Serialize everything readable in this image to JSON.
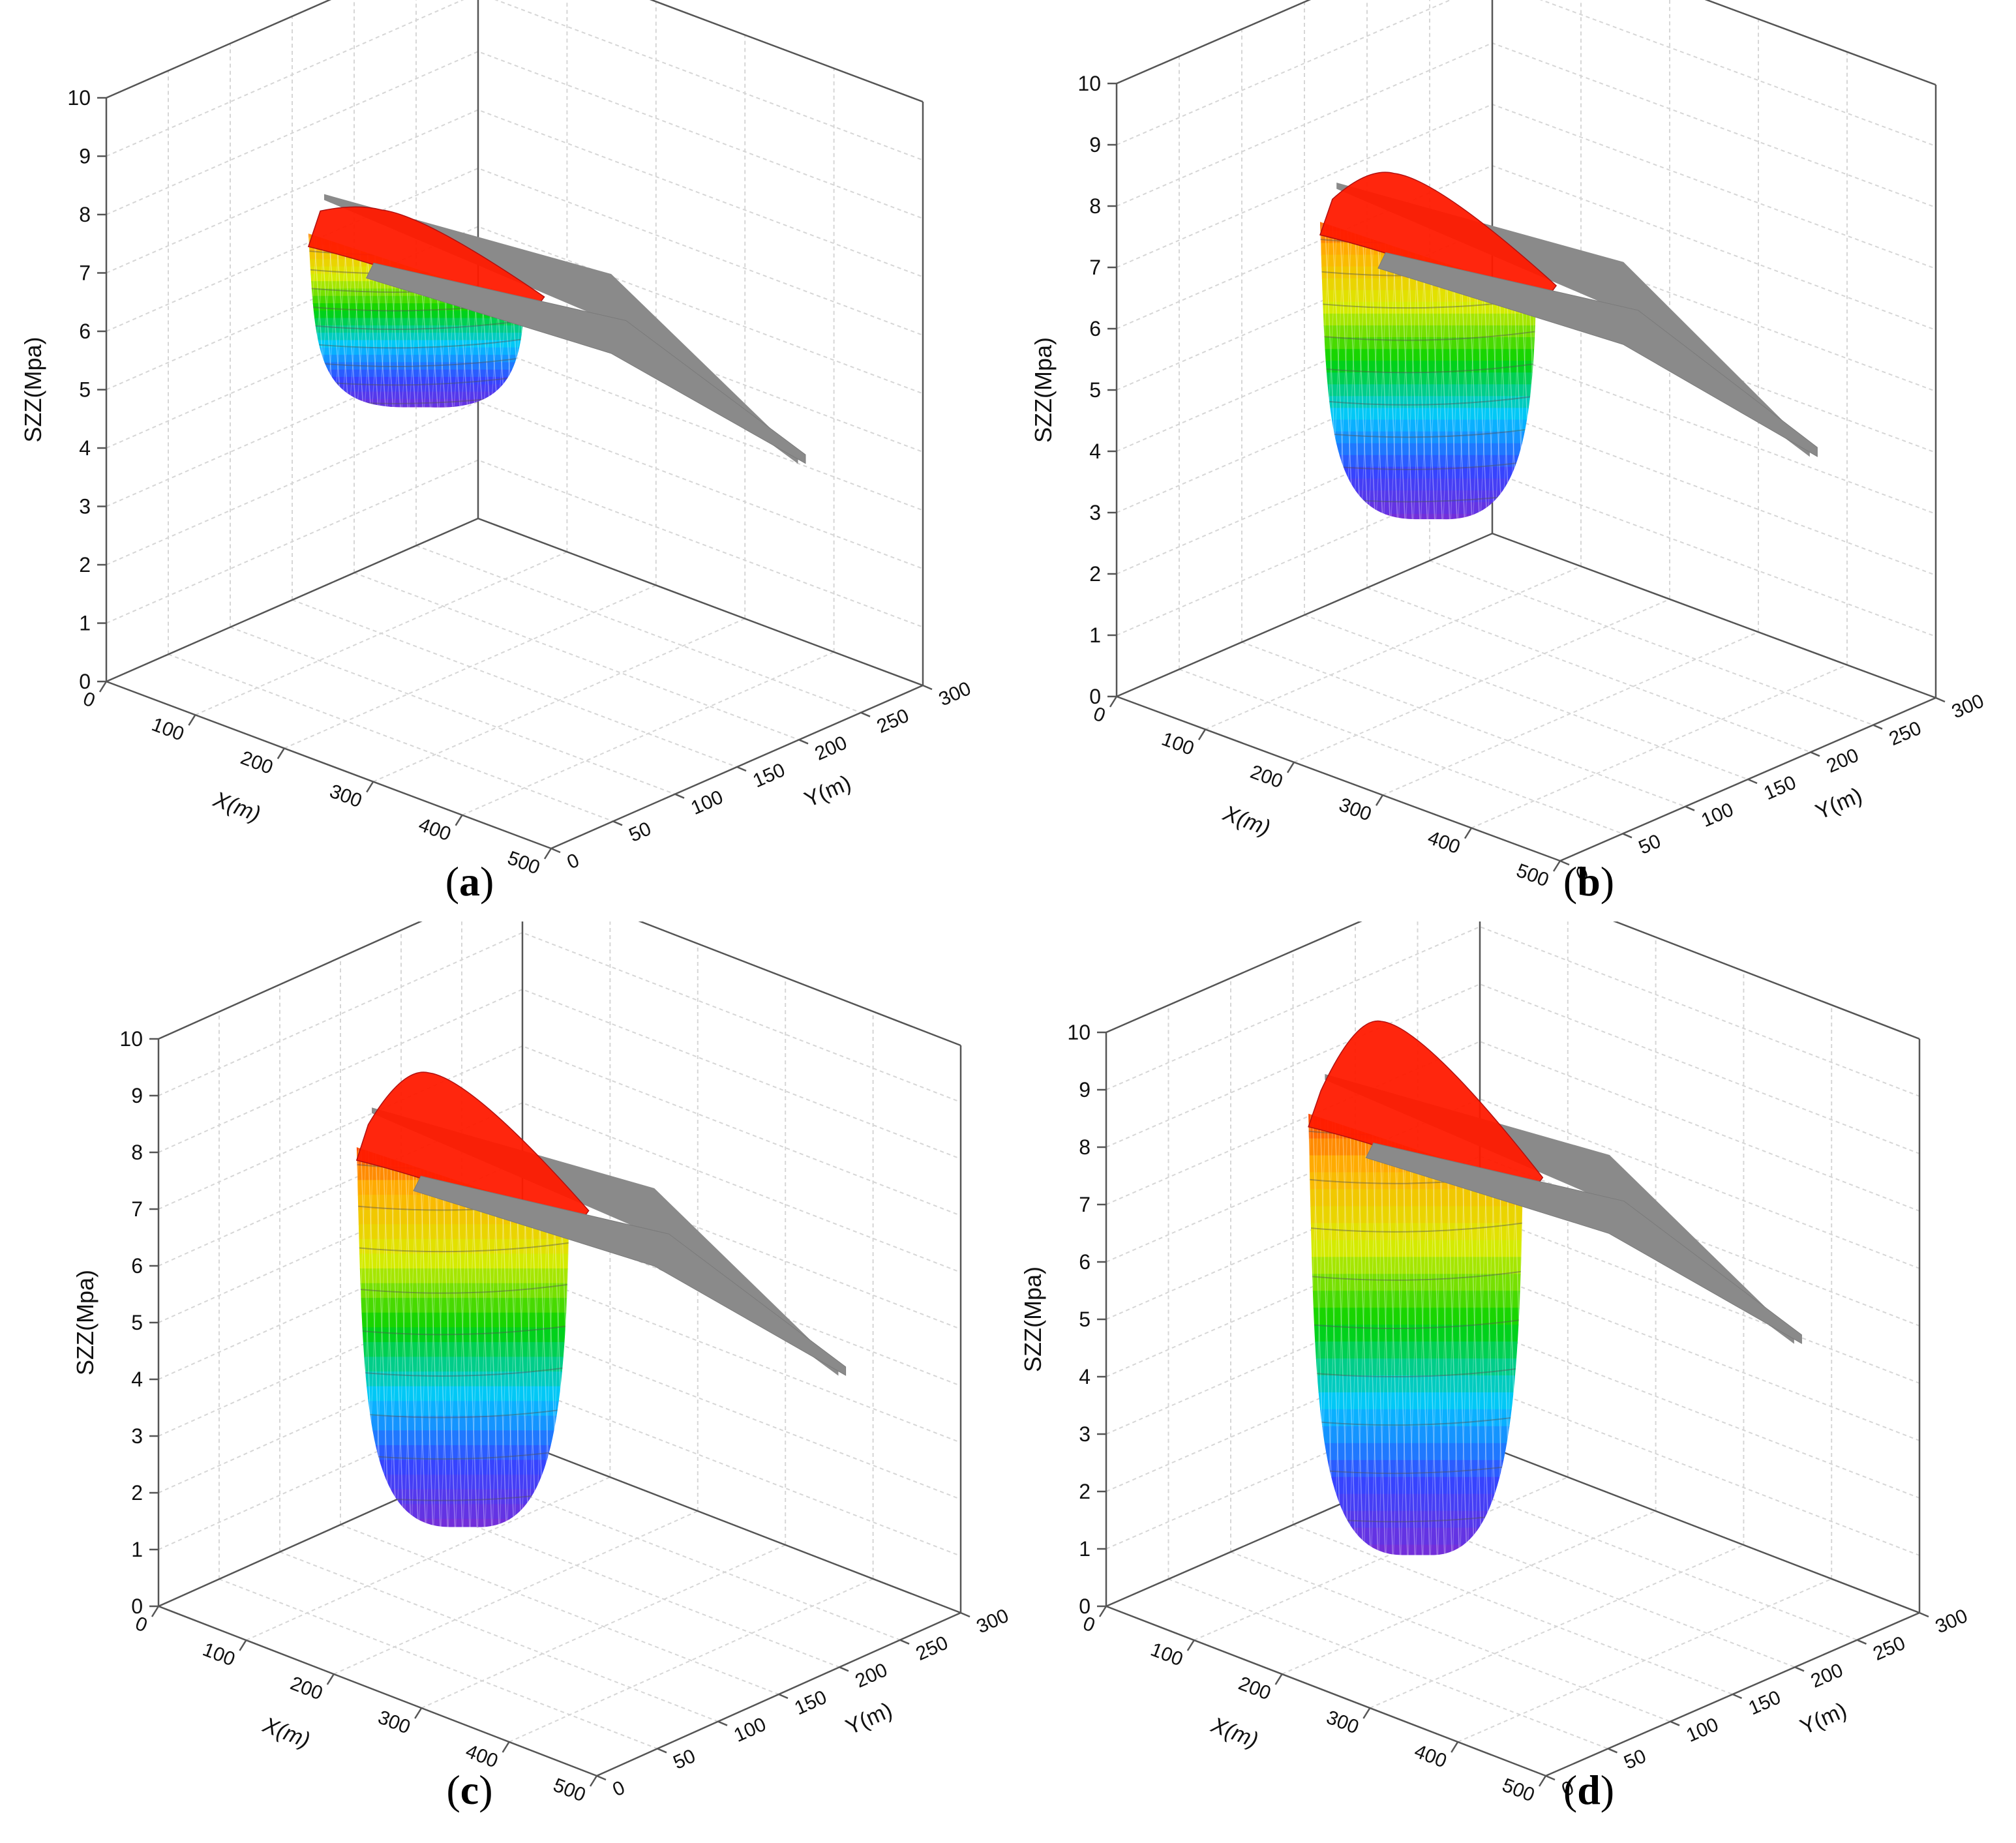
{
  "chart_data": [
    {
      "type": "surface3d",
      "caption_label": "a",
      "zlabel": "SZZ(Mpa)",
      "xlabel": "X(m)",
      "ylabel": "Y(m)",
      "zticks": [
        "0",
        "1",
        "2",
        "3",
        "4",
        "5",
        "6",
        "7",
        "8",
        "9",
        "10"
      ],
      "xticks": [
        "0",
        "100",
        "200",
        "300",
        "400",
        "500"
      ],
      "yticks": [
        "0",
        "50",
        "100",
        "150",
        "200",
        "250",
        "300"
      ],
      "zlim": [
        0,
        10
      ],
      "xlim": [
        0,
        500
      ],
      "ylim": [
        0,
        300
      ],
      "surface_top_z": 6.9,
      "peak_z": 7.0,
      "trough_min_z": 4.3
    },
    {
      "type": "surface3d",
      "caption_label": "b",
      "zlabel": "SZZ(Mpa)",
      "xlabel": "X(m)",
      "ylabel": "Y(m)",
      "zticks": [
        "0",
        "1",
        "2",
        "3",
        "4",
        "5",
        "6",
        "7",
        "8",
        "9",
        "10"
      ],
      "xticks": [
        "0",
        "100",
        "200",
        "300",
        "400",
        "500"
      ],
      "yticks": [
        "0",
        "50",
        "100",
        "150",
        "200",
        "250",
        "300"
      ],
      "zlim": [
        0,
        10
      ],
      "xlim": [
        0,
        500
      ],
      "ylim": [
        0,
        300
      ],
      "surface_top_z": 7.0,
      "peak_z": 7.5,
      "trough_min_z": 2.5
    },
    {
      "type": "surface3d",
      "caption_label": "c",
      "zlabel": "SZZ(Mpa)",
      "xlabel": "X(m)",
      "ylabel": "Y(m)",
      "zticks": [
        "0",
        "1",
        "2",
        "3",
        "4",
        "5",
        "6",
        "7",
        "8",
        "9",
        "10"
      ],
      "xticks": [
        "0",
        "100",
        "200",
        "300",
        "400",
        "500"
      ],
      "yticks": [
        "0",
        "50",
        "100",
        "150",
        "200",
        "250",
        "300"
      ],
      "zlim": [
        0,
        10
      ],
      "xlim": [
        0,
        500
      ],
      "ylim": [
        0,
        300
      ],
      "surface_top_z": 7.3,
      "peak_z": 8.3,
      "trough_min_z": 1.0
    },
    {
      "type": "surface3d",
      "caption_label": "d",
      "zlabel": "SZZ(Mpa)",
      "xlabel": "X(m)",
      "ylabel": "Y(m)",
      "zticks": [
        "0",
        "1",
        "2",
        "3",
        "4",
        "5",
        "6",
        "7",
        "8",
        "9",
        "10"
      ],
      "xticks": [
        "0",
        "100",
        "200",
        "300",
        "400",
        "500"
      ],
      "yticks": [
        "0",
        "50",
        "100",
        "150",
        "200",
        "250",
        "300"
      ],
      "zlim": [
        0,
        10
      ],
      "xlim": [
        0,
        500
      ],
      "ylim": [
        0,
        300
      ],
      "surface_top_z": 7.8,
      "peak_z": 9.1,
      "trough_min_z": 0.5
    }
  ],
  "colors": {
    "axis": "#555555",
    "grid": "#d6d6d6",
    "surface_gray": "#8a8a8a",
    "colormap": [
      "#7a2bd6",
      "#3344ff",
      "#00c8ff",
      "#00d200",
      "#dcec00",
      "#ffb000",
      "#ff1a00"
    ]
  }
}
